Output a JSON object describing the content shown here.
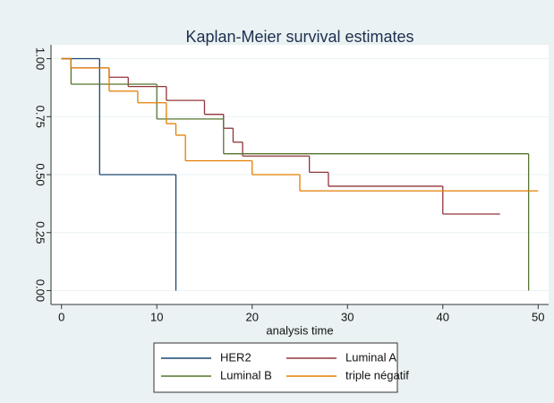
{
  "chart_data": {
    "type": "step",
    "title": "Kaplan-Meier survival estimates",
    "x_label": "analysis time",
    "xlim": [
      -1.1,
      51.1
    ],
    "ylim": [
      -0.06,
      1.06
    ],
    "xticks": [
      0,
      10,
      20,
      30,
      40,
      50
    ],
    "yticks": [
      {
        "value": 0,
        "label": "0.00"
      },
      {
        "value": 0.25,
        "label": "0.25"
      },
      {
        "value": 0.5,
        "label": "0.50"
      },
      {
        "value": 0.75,
        "label": "0.75"
      },
      {
        "value": 1,
        "label": "1.00"
      }
    ],
    "grid": true,
    "legend": "bottom",
    "series": [
      {
        "name": "HER2",
        "color": "#1a476f",
        "x": [
          0,
          4,
          12
        ],
        "values": [
          1,
          0.5,
          0
        ]
      },
      {
        "name": "Luminal A",
        "color": "#90353b",
        "x": [
          0,
          1,
          5,
          7,
          11,
          15,
          17,
          18,
          19,
          26,
          28,
          40,
          46
        ],
        "values": [
          1,
          0.96,
          0.92,
          0.88,
          0.82,
          0.76,
          0.7,
          0.64,
          0.58,
          0.51,
          0.45,
          0.33,
          0.33
        ]
      },
      {
        "name": "Luminal B",
        "color": "#55752f",
        "x": [
          0,
          1,
          10,
          17,
          49
        ],
        "values": [
          1,
          0.89,
          0.74,
          0.59,
          0
        ]
      },
      {
        "name": "triple négatif",
        "color": "#e37e00",
        "x": [
          0,
          1,
          5,
          8,
          11,
          12,
          13,
          20,
          25,
          50
        ],
        "values": [
          1,
          0.96,
          0.86,
          0.81,
          0.72,
          0.67,
          0.56,
          0.5,
          0.43,
          0.43
        ]
      }
    ]
  }
}
